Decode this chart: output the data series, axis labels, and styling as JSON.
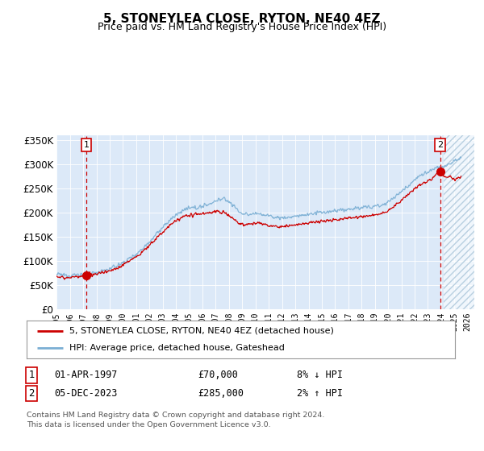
{
  "title": "5, STONEYLEA CLOSE, RYTON, NE40 4EZ",
  "subtitle": "Price paid vs. HM Land Registry's House Price Index (HPI)",
  "ylabel_ticks": [
    "£0",
    "£50K",
    "£100K",
    "£150K",
    "£200K",
    "£250K",
    "£300K",
    "£350K"
  ],
  "ytick_values": [
    0,
    50000,
    100000,
    150000,
    200000,
    250000,
    300000,
    350000
  ],
  "ylim": [
    0,
    360000
  ],
  "xlim_start": 1995.0,
  "xlim_end": 2026.5,
  "xticks": [
    1995,
    1996,
    1997,
    1998,
    1999,
    2000,
    2001,
    2002,
    2003,
    2004,
    2005,
    2006,
    2007,
    2008,
    2009,
    2010,
    2011,
    2012,
    2013,
    2014,
    2015,
    2016,
    2017,
    2018,
    2019,
    2020,
    2021,
    2022,
    2023,
    2024,
    2025,
    2026
  ],
  "background_color": "#dce9f8",
  "line_color_red": "#cc0000",
  "line_color_blue": "#7bafd4",
  "sale1_x": 1997.25,
  "sale1_y": 70000,
  "sale2_x": 2023.92,
  "sale2_y": 285000,
  "legend_line1": "5, STONEYLEA CLOSE, RYTON, NE40 4EZ (detached house)",
  "legend_line2": "HPI: Average price, detached house, Gateshead",
  "table_row1": [
    "1",
    "01-APR-1997",
    "£70,000",
    "8% ↓ HPI"
  ],
  "table_row2": [
    "2",
    "05-DEC-2023",
    "£285,000",
    "2% ↑ HPI"
  ],
  "footnote": "Contains HM Land Registry data © Crown copyright and database right 2024.\nThis data is licensed under the Open Government Licence v3.0."
}
